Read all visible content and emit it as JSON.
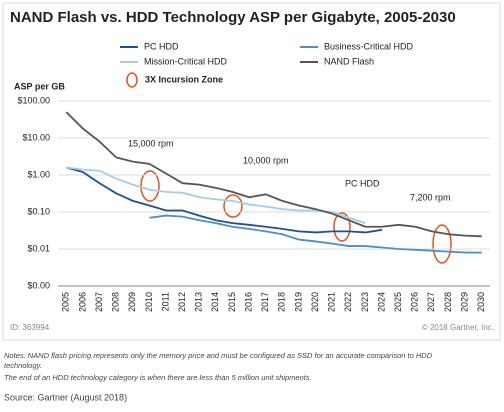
{
  "chart_data": {
    "type": "line",
    "title": "NAND Flash vs. HDD Technology ASP per Gigabyte, 2005-2030",
    "y_label": "ASP per GB",
    "categories": [
      "2005",
      "2006",
      "2007",
      "2008",
      "2009",
      "2010",
      "2011",
      "2012",
      "2013",
      "2014",
      "2015",
      "2016",
      "2017",
      "2018",
      "2019",
      "2020",
      "2021",
      "2022",
      "2023",
      "2024",
      "2025",
      "2026",
      "2027",
      "2028",
      "2029",
      "2030"
    ],
    "log_scale": true,
    "ylim": [
      0.001,
      100
    ],
    "yticks": [
      {
        "value": 100,
        "label": "$100.00"
      },
      {
        "value": 10,
        "label": "$10.00"
      },
      {
        "value": 1,
        "label": "$1.00"
      },
      {
        "value": 0.1,
        "label": "$0.10"
      },
      {
        "value": 0.01,
        "label": "$0.01"
      },
      {
        "value": 0.001,
        "label": "$0.00"
      }
    ],
    "grid": true,
    "series": [
      {
        "name": "PC HDD",
        "color": "#1f4e9a",
        "values": [
          1.6,
          1.2,
          0.6,
          0.32,
          0.2,
          0.15,
          0.11,
          0.11,
          0.08,
          0.06,
          0.05,
          0.045,
          0.04,
          0.035,
          0.03,
          0.028,
          0.03,
          0.03,
          0.028,
          0.033,
          null,
          null,
          null,
          null,
          null,
          null
        ]
      },
      {
        "name": "Business-Critical HDD",
        "color": "#4a90c8",
        "values": [
          null,
          null,
          null,
          null,
          null,
          0.07,
          0.08,
          0.075,
          0.06,
          0.05,
          0.04,
          0.035,
          0.03,
          0.025,
          0.018,
          0.016,
          0.014,
          0.012,
          0.012,
          0.011,
          0.01,
          0.0095,
          0.009,
          0.0085,
          0.008,
          0.008
        ]
      },
      {
        "name": "Mission-Critical HDD",
        "color": "#a8cbe8",
        "values": [
          1.6,
          1.4,
          1.3,
          0.8,
          0.55,
          0.4,
          0.35,
          0.33,
          0.25,
          0.22,
          0.2,
          0.16,
          0.14,
          0.12,
          0.11,
          0.11,
          0.1,
          0.07,
          0.05,
          null,
          null,
          null,
          null,
          null,
          null,
          null
        ]
      },
      {
        "name": "NAND Flash",
        "color": "#555555",
        "values": [
          50,
          18,
          8,
          3,
          2.3,
          2.0,
          1.1,
          0.6,
          0.55,
          0.45,
          0.35,
          0.25,
          0.3,
          0.2,
          0.15,
          0.12,
          0.09,
          0.06,
          0.04,
          0.04,
          0.045,
          0.04,
          0.03,
          0.025,
          0.023,
          0.022
        ]
      }
    ],
    "zone_label": "3X Incursion Zone",
    "annotations": [
      "15,000 rpm",
      "10,000 rpm",
      "PC HDD",
      "7,200 rpm"
    ],
    "id": "ID: 363994",
    "copyright": "© 2018 Gartner, Inc.",
    "notes": [
      "Notes: NAND flash pricing represents only the memory price and must be configured as SSD for an accurate comparison to HDD",
      "technology.",
      "The end of an HDD technology category is when there are less than 5 million unit shipments."
    ],
    "source": "Source: Gartner (August 2018)"
  }
}
